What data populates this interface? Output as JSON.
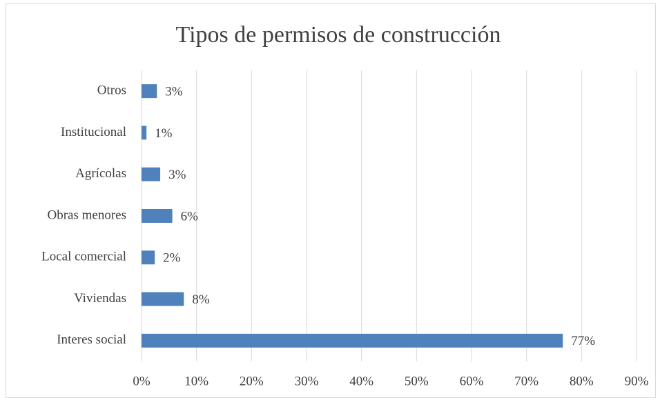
{
  "chart_data": {
    "type": "hbar",
    "title": "Tipos de permisos de construcción",
    "categories": [
      "Interes social",
      "Viviendas",
      "Local comercial",
      "Obras menores",
      "Agrícolas",
      "Institucional",
      "Otros"
    ],
    "values": [
      76.6,
      7.7,
      2.4,
      5.6,
      3.4,
      0.9,
      2.8
    ],
    "value_labels": [
      "77%",
      "8%",
      "2%",
      "6%",
      "3%",
      "1%",
      "3%"
    ],
    "color": "#4f81bd",
    "xlim": [
      0,
      90
    ],
    "xticks": [
      {
        "value": 0,
        "label": "0%"
      },
      {
        "value": 10,
        "label": "10%"
      },
      {
        "value": 20,
        "label": "20%"
      },
      {
        "value": 30,
        "label": "30%"
      },
      {
        "value": 40,
        "label": "40%"
      },
      {
        "value": 50,
        "label": "50%"
      },
      {
        "value": 60,
        "label": "60%"
      },
      {
        "value": 70,
        "label": "70%"
      },
      {
        "value": 80,
        "label": "80%"
      },
      {
        "value": 90,
        "label": "90%"
      }
    ],
    "grid": true
  }
}
